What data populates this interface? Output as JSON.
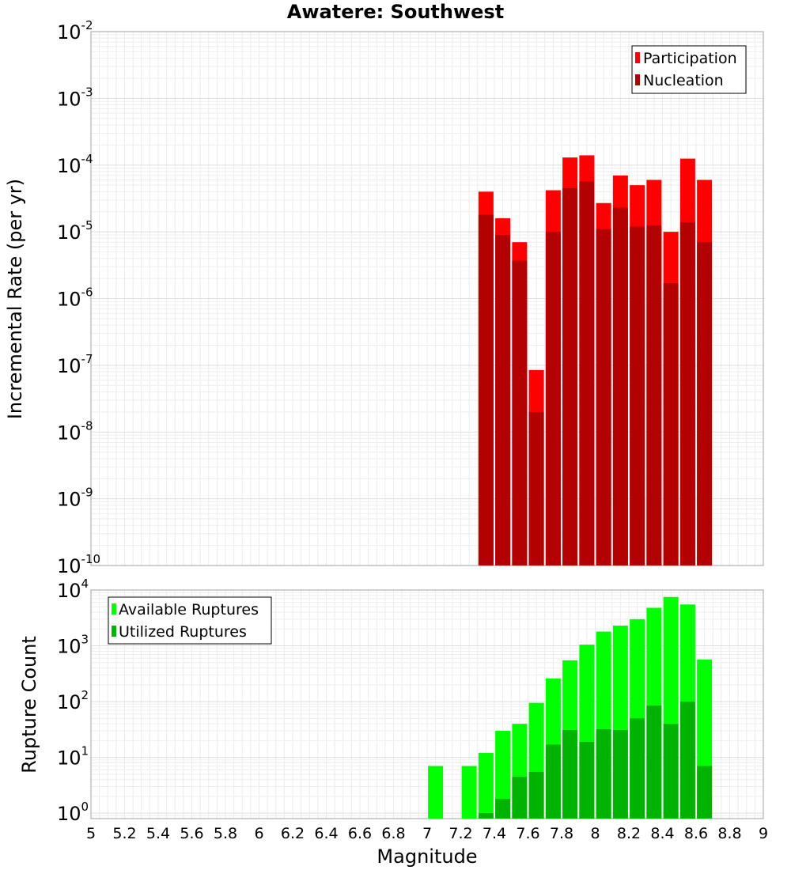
{
  "chart_data": [
    {
      "type": "bar",
      "title": "Awatere: Southwest",
      "ylabel": "Incremental Rate (per yr)",
      "xlabel": "",
      "yscale": "log",
      "ylim": [
        1e-10,
        0.01
      ],
      "xlim": [
        5,
        9
      ],
      "grid": true,
      "legend_position": "top-right",
      "x": [
        7.35,
        7.45,
        7.55,
        7.65,
        7.75,
        7.85,
        7.95,
        8.05,
        8.15,
        8.25,
        8.35,
        8.45,
        8.55,
        8.65
      ],
      "y_tick_labels": [
        {
          "base": "10",
          "exp": "-2"
        },
        {
          "base": "10",
          "exp": "-3"
        },
        {
          "base": "10",
          "exp": "-4"
        },
        {
          "base": "10",
          "exp": "-5"
        },
        {
          "base": "10",
          "exp": "-6"
        },
        {
          "base": "10",
          "exp": "-7"
        },
        {
          "base": "10",
          "exp": "-8"
        },
        {
          "base": "10",
          "exp": "-9"
        },
        {
          "base": "10",
          "exp": "-10"
        }
      ],
      "series": [
        {
          "name": "Participation",
          "color": "#ff0000",
          "values": [
            4e-05,
            1.6e-05,
            7e-06,
            8.5e-08,
            4.2e-05,
            0.00013,
            0.00014,
            2.7e-05,
            7e-05,
            5e-05,
            6e-05,
            1e-05,
            0.000125,
            6e-05
          ]
        },
        {
          "name": "Nucleation",
          "color": "#b30000",
          "values": [
            1.8e-05,
            9e-06,
            3.7e-06,
            2e-08,
            1e-05,
            4.5e-05,
            5.7e-05,
            1.1e-05,
            2.3e-05,
            1.2e-05,
            1.25e-05,
            1.7e-06,
            1.4e-05,
            7e-06
          ]
        }
      ]
    },
    {
      "type": "bar",
      "title": "",
      "ylabel": "Rupture Count",
      "xlabel": "Magnitude",
      "yscale": "log",
      "ylim": [
        0.8,
        10000
      ],
      "xlim": [
        5,
        9
      ],
      "grid": true,
      "legend_position": "top-left",
      "x_tick_labels": [
        "5",
        "5.2",
        "5.4",
        "5.6",
        "5.8",
        "6",
        "6.2",
        "6.4",
        "6.6",
        "6.8",
        "7",
        "7.2",
        "7.4",
        "7.6",
        "7.8",
        "8",
        "8.2",
        "8.4",
        "8.6",
        "8.8",
        "9"
      ],
      "y_tick_labels": [
        {
          "base": "10",
          "exp": "4"
        },
        {
          "base": "10",
          "exp": "3"
        },
        {
          "base": "10",
          "exp": "2"
        },
        {
          "base": "10",
          "exp": "1"
        },
        {
          "base": "10",
          "exp": "0"
        }
      ],
      "x": [
        7.05,
        7.25,
        7.35,
        7.45,
        7.55,
        7.65,
        7.75,
        7.85,
        7.95,
        8.05,
        8.15,
        8.25,
        8.35,
        8.45,
        8.55,
        8.65
      ],
      "series": [
        {
          "name": "Available Ruptures",
          "color": "#00ff00",
          "values": [
            7,
            7,
            12,
            30,
            40,
            95,
            260,
            550,
            1050,
            1800,
            2300,
            3000,
            4800,
            7500,
            5500,
            570
          ]
        },
        {
          "name": "Utilized Ruptures",
          "color": "#00b300",
          "values": [
            0,
            0,
            1,
            1.8,
            4.5,
            5.5,
            17,
            31,
            19,
            32,
            31,
            50,
            85,
            40,
            100,
            7
          ]
        }
      ]
    }
  ]
}
